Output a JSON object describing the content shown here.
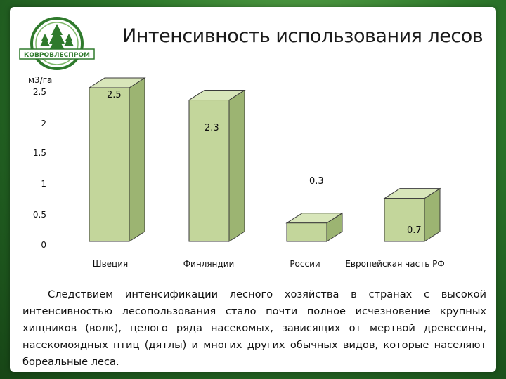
{
  "header": {
    "title": "Интенсивность использования лесов",
    "logo_text": "КОВРОВЛЕСПРОМ"
  },
  "chart_data": {
    "type": "bar",
    "ylabel": "м3/га",
    "yticks": [
      "2.5",
      "2",
      "1.5",
      "1",
      "0.5",
      "0"
    ],
    "ylim": [
      0,
      2.5
    ],
    "categories": [
      "Швеция",
      "Финляндии",
      "России",
      "Европейская часть РФ"
    ],
    "values": [
      2.5,
      2.3,
      0.3,
      0.7
    ],
    "labels": [
      "2.5",
      "2.3",
      "0.3",
      "0.7"
    ],
    "bar_color": "#c3d69b",
    "grid": false,
    "legend": "none"
  },
  "caption": "Следствием интенсификации лесного хозяйства в странах с высокой интенсивностью лесопользования стало почти полное исчезновение крупных хищников (волк), целого ряда насекомых, зависящих от мертвой древесины, насекомоядных птиц (дятлы) и многих других обычных видов, которые населяют бореальные леса."
}
